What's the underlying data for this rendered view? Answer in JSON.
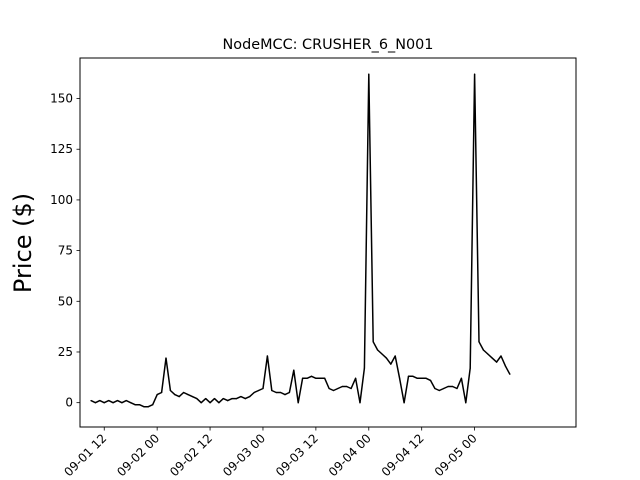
{
  "chart_data": {
    "type": "line",
    "title": "NodeMCC: CRUSHER_6_N001",
    "xlabel": "",
    "ylabel": "Price ($)",
    "ylim": [
      -12,
      170
    ],
    "xlim": [
      "09-01 06:30",
      "09-05 23:00"
    ],
    "grid": false,
    "line_color": "#000000",
    "y_ticks": [
      0,
      25,
      50,
      75,
      100,
      125,
      150
    ],
    "x_ticks": [
      "09-01 12",
      "09-02 00",
      "09-02 12",
      "09-03 00",
      "09-03 12",
      "09-04 00",
      "09-04 12",
      "09-05 00"
    ],
    "series": [
      {
        "name": "",
        "x": [
          "09-01 09:00",
          "09-01 10:00",
          "09-01 11:00",
          "09-01 12:00",
          "09-01 13:00",
          "09-01 14:00",
          "09-01 15:00",
          "09-01 16:00",
          "09-01 17:00",
          "09-01 18:00",
          "09-01 19:00",
          "09-01 20:00",
          "09-01 21:00",
          "09-01 22:00",
          "09-01 23:00",
          "09-02 00:00",
          "09-02 01:00",
          "09-02 02:00",
          "09-02 03:00",
          "09-02 04:00",
          "09-02 05:00",
          "09-02 06:00",
          "09-02 07:00",
          "09-02 08:00",
          "09-02 09:00",
          "09-02 10:00",
          "09-02 11:00",
          "09-02 12:00",
          "09-02 13:00",
          "09-02 14:00",
          "09-02 15:00",
          "09-02 16:00",
          "09-02 17:00",
          "09-02 18:00",
          "09-02 19:00",
          "09-02 20:00",
          "09-02 21:00",
          "09-02 22:00",
          "09-02 23:00",
          "09-03 00:00",
          "09-03 01:00",
          "09-03 02:00",
          "09-03 03:00",
          "09-03 04:00",
          "09-03 05:00",
          "09-03 06:00",
          "09-03 07:00",
          "09-03 08:00",
          "09-03 09:00",
          "09-03 10:00",
          "09-03 11:00",
          "09-03 12:00",
          "09-03 13:00",
          "09-03 14:00",
          "09-03 15:00",
          "09-03 16:00",
          "09-03 17:00",
          "09-03 18:00",
          "09-03 19:00",
          "09-03 20:00",
          "09-03 21:00",
          "09-03 22:00",
          "09-03 23:00",
          "09-04 00:00",
          "09-04 01:00",
          "09-04 02:00",
          "09-04 03:00",
          "09-04 04:00",
          "09-04 05:00",
          "09-04 06:00",
          "09-04 07:00",
          "09-04 08:00",
          "09-04 09:00",
          "09-04 10:00",
          "09-04 11:00",
          "09-04 12:00",
          "09-04 13:00",
          "09-04 14:00",
          "09-04 15:00",
          "09-04 16:00",
          "09-04 17:00",
          "09-04 18:00",
          "09-04 19:00",
          "09-04 20:00",
          "09-04 21:00",
          "09-04 22:00",
          "09-04 23:00",
          "09-05 00:00",
          "09-05 01:00",
          "09-05 02:00",
          "09-05 03:00",
          "09-05 04:00",
          "09-05 05:00",
          "09-05 06:00",
          "09-05 07:00",
          "09-05 08:00"
        ],
        "values": [
          1,
          0,
          1,
          0,
          1,
          0,
          1,
          0,
          1,
          0,
          -1,
          -1,
          -2,
          -2,
          -1,
          4,
          5,
          22,
          6,
          4,
          3,
          5,
          4,
          3,
          2,
          0,
          2,
          0,
          2,
          0,
          2,
          1,
          2,
          2,
          3,
          2,
          3,
          5,
          6,
          7,
          23,
          6,
          5,
          5,
          4,
          5,
          16,
          0,
          12,
          12,
          13,
          12,
          12,
          12,
          7,
          6,
          7,
          8,
          8,
          7,
          12,
          0,
          17,
          162,
          30,
          26,
          24,
          22,
          19,
          23,
          12,
          0,
          13,
          13,
          12,
          12,
          12,
          11,
          7,
          6,
          7,
          8,
          8,
          7,
          12,
          0,
          17,
          162,
          30,
          26,
          24,
          22,
          20,
          23,
          18,
          14
        ]
      }
    ]
  }
}
